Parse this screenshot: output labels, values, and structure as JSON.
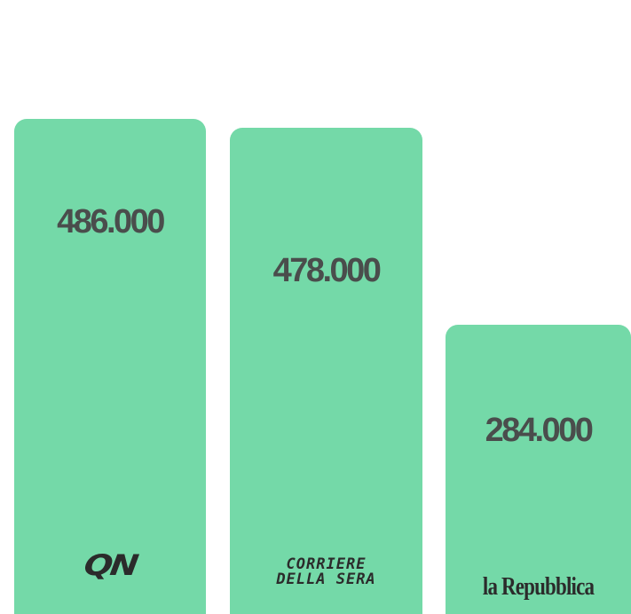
{
  "chart_data": {
    "type": "bar",
    "categories": [
      "QN",
      "CORRIERE DELLA SERA",
      "la Repubblica"
    ],
    "values": [
      486000,
      478000,
      284000
    ],
    "value_labels": [
      "486.000",
      "478.000",
      "284.000"
    ],
    "title": "",
    "xlabel": "",
    "ylabel": "",
    "ylim": [
      0,
      590000
    ],
    "grid": false,
    "legend": "none"
  },
  "logos": {
    "qn": "QN",
    "corriere_line1": "CORRIERE",
    "corriere_line2": "DELLA SERA",
    "repubblica": "la Repubblica"
  },
  "colors": {
    "bar": "#74d9a8",
    "value_text": "#4a4d4c",
    "logo_text": "#2b2b2b",
    "background": "#ffffff"
  }
}
